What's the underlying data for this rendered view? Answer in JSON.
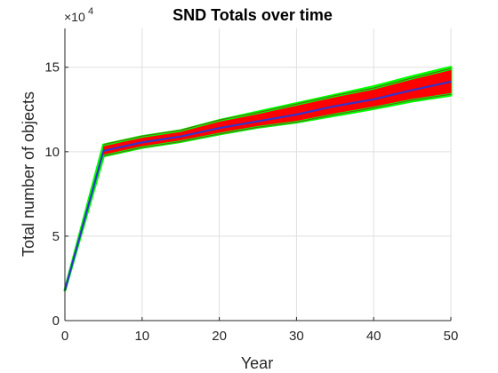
{
  "chart_data": {
    "type": "line",
    "title": "SND Totals over time",
    "xlabel": "Year",
    "ylabel": "Total number of objects",
    "y_multiplier_base": "×10",
    "y_multiplier_exp": "4",
    "xlim": [
      0,
      50
    ],
    "ylim": [
      0,
      17.3
    ],
    "x_ticks": [
      0,
      10,
      20,
      30,
      40,
      50
    ],
    "y_ticks": [
      0,
      5,
      10,
      15
    ],
    "x_tick_labels": [
      "0",
      "10",
      "20",
      "30",
      "40",
      "50"
    ],
    "y_tick_labels": [
      "0",
      "5",
      "10",
      "15"
    ],
    "grid": true,
    "colors": {
      "min_max_envelope": "#00ff00",
      "spread_band": "#ff0000",
      "mean_line": "#3333cc",
      "axis": "#262626",
      "grid": "#dfdfdf"
    },
    "series": [
      {
        "role": "min_max_envelope",
        "x": [
          0,
          5,
          10,
          15,
          20,
          25,
          30,
          35,
          40,
          45,
          50
        ],
        "lower": [
          1.8,
          9.75,
          10.25,
          10.6,
          11.05,
          11.45,
          11.75,
          12.15,
          12.55,
          13.0,
          13.35
        ],
        "upper": [
          1.8,
          10.4,
          10.9,
          11.25,
          11.85,
          12.35,
          12.85,
          13.35,
          13.85,
          14.45,
          15.0
        ]
      },
      {
        "role": "spread_band",
        "x": [
          5,
          10,
          15,
          20,
          25,
          30,
          35,
          40,
          45,
          50
        ],
        "lower": [
          9.85,
          10.35,
          10.7,
          11.15,
          11.55,
          11.85,
          12.3,
          12.7,
          13.15,
          13.5
        ],
        "upper": [
          10.3,
          10.8,
          11.15,
          11.75,
          12.2,
          12.7,
          13.2,
          13.65,
          14.25,
          14.8
        ]
      },
      {
        "role": "mean_line",
        "x": [
          0,
          5,
          10,
          15,
          20,
          25,
          30,
          35,
          40,
          45,
          50
        ],
        "y": [
          1.8,
          10.05,
          10.55,
          10.9,
          11.4,
          11.8,
          12.2,
          12.7,
          13.1,
          13.65,
          14.15
        ]
      }
    ]
  }
}
